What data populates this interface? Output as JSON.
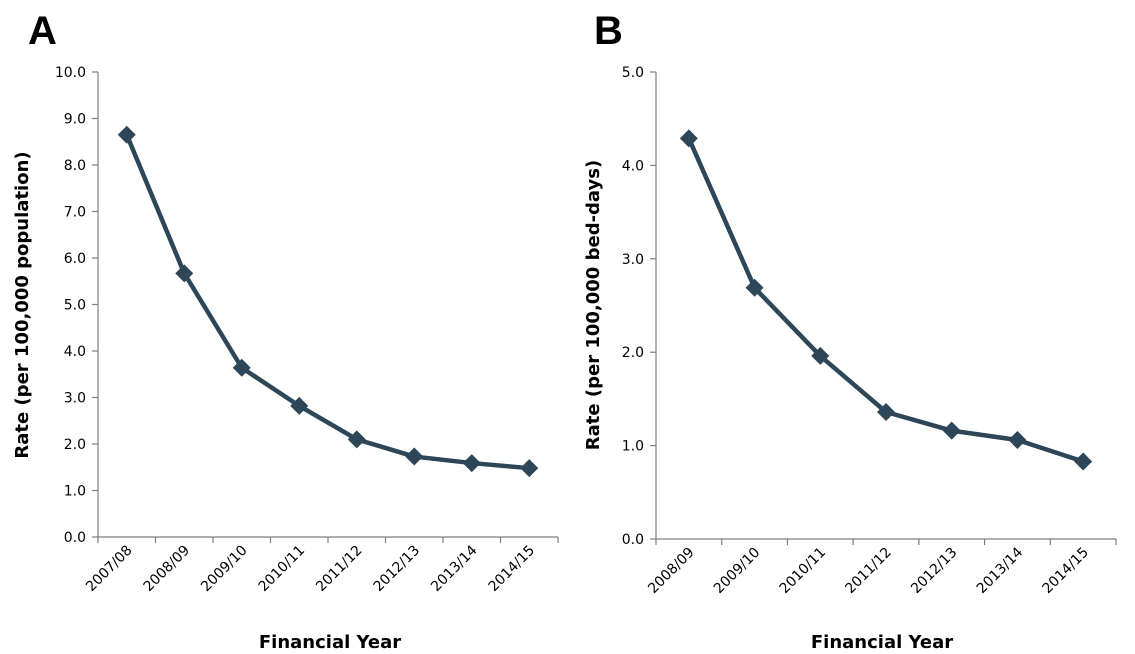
{
  "chart_data": [
    {
      "type": "line",
      "panel": "A",
      "title": "",
      "xlabel": "Financial Year",
      "ylabel": "Rate (per 100,000 population)",
      "ylim": [
        0,
        10
      ],
      "yticks": [
        "0.0",
        "1.0",
        "2.0",
        "3.0",
        "4.0",
        "5.0",
        "6.0",
        "7.0",
        "8.0",
        "9.0",
        "10.0"
      ],
      "categories": [
        "2007/08",
        "2008/09",
        "2009/10",
        "2010/11",
        "2011/12",
        "2012/13",
        "2013/14",
        "2014/15"
      ],
      "series": [
        {
          "values": [
            8.65,
            5.67,
            3.64,
            2.82,
            2.1,
            1.73,
            1.59,
            1.48
          ]
        }
      ],
      "grid": false,
      "colors": {
        "series": "#2d4658",
        "axis": "#7f7f7f"
      }
    },
    {
      "type": "line",
      "panel": "B",
      "title": "",
      "xlabel": "Financial Year",
      "ylabel": "Rate (per 100,000 bed-days)",
      "ylim": [
        0,
        5
      ],
      "yticks": [
        "0.0",
        "1.0",
        "2.0",
        "3.0",
        "4.0",
        "5.0"
      ],
      "categories": [
        "2008/09",
        "2009/10",
        "2010/11",
        "2011/12",
        "2012/13",
        "2013/14",
        "2014/15"
      ],
      "series": [
        {
          "values": [
            4.29,
            2.69,
            1.96,
            1.36,
            1.16,
            1.06,
            0.83
          ]
        }
      ],
      "grid": false,
      "colors": {
        "series": "#2d4658",
        "axis": "#7f7f7f"
      }
    }
  ]
}
